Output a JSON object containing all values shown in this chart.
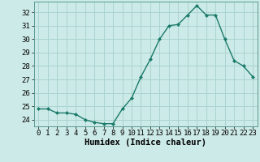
{
  "x": [
    0,
    1,
    2,
    3,
    4,
    5,
    6,
    7,
    8,
    9,
    10,
    11,
    12,
    13,
    14,
    15,
    16,
    17,
    18,
    19,
    20,
    21,
    22,
    23
  ],
  "y": [
    24.8,
    24.8,
    24.5,
    24.5,
    24.4,
    24.0,
    23.8,
    23.7,
    23.7,
    24.8,
    25.6,
    27.2,
    28.5,
    30.0,
    31.0,
    31.1,
    31.8,
    32.5,
    31.8,
    31.8,
    30.0,
    28.4,
    28.0,
    27.2
  ],
  "line_color": "#1a7a6a",
  "marker": "D",
  "marker_size": 2,
  "bg_color": "#cceae7",
  "grid_color": "#aad4d0",
  "xlabel": "Humidex (Indice chaleur)",
  "xlim": [
    -0.5,
    23.5
  ],
  "ylim": [
    23.5,
    32.8
  ],
  "yticks": [
    24,
    25,
    26,
    27,
    28,
    29,
    30,
    31,
    32
  ],
  "xticks": [
    0,
    1,
    2,
    3,
    4,
    5,
    6,
    7,
    8,
    9,
    10,
    11,
    12,
    13,
    14,
    15,
    16,
    17,
    18,
    19,
    20,
    21,
    22,
    23
  ],
  "tick_fontsize": 6.5,
  "xlabel_fontsize": 7.5
}
